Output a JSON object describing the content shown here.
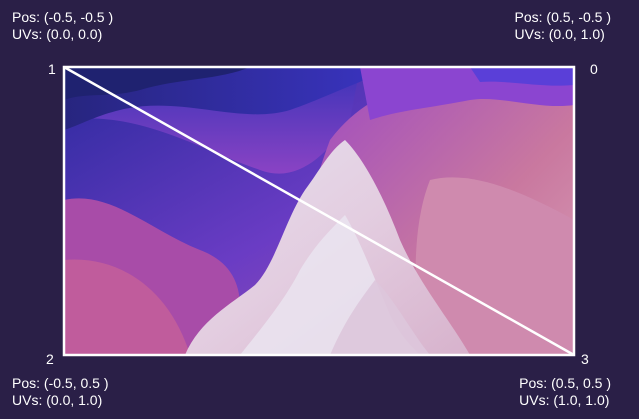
{
  "vertices": [
    {
      "index": "0",
      "pos": "Pos: (0.5, -0.5 )",
      "uvs": "UVs: (0.0, 1.0)"
    },
    {
      "index": "1",
      "pos": "Pos: (-0.5, -0.5 )",
      "uvs": "UVs: (0.0, 0.0)"
    },
    {
      "index": "2",
      "pos": "Pos: (-0.5, 0.5 )",
      "uvs": "UVs: (0.0, 1.0)"
    },
    {
      "index": "3",
      "pos": "Pos: (0.5, 0.5 )",
      "uvs": "UVs: (1.0, 1.0)"
    }
  ],
  "colors": {
    "background": "#2a1f47",
    "outline": "#ffffff",
    "texture_deep_blue": "#2c2a9e",
    "texture_violet": "#7a3fc9",
    "texture_magenta": "#b04fa8",
    "texture_pink": "#d98ab0",
    "texture_pale": "#e8dbe6"
  },
  "icons": {
    "texture": "macos-monterey-wallpaper-texture"
  }
}
